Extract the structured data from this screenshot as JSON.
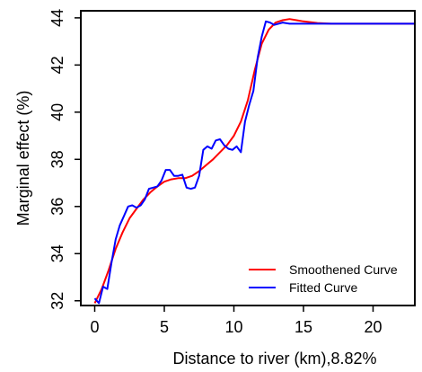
{
  "chart_data": {
    "type": "line",
    "title": "",
    "xlabel": "Distance to river (km),8.82%",
    "ylabel": "Marginal effect (%)",
    "xlim": [
      -1,
      23
    ],
    "ylim": [
      31.8,
      44.3
    ],
    "xticks": [
      0,
      5,
      10,
      15,
      20
    ],
    "yticks": [
      32,
      34,
      36,
      38,
      40,
      42,
      44
    ],
    "grid": false,
    "legend_position": "bottom-right",
    "series": [
      {
        "name": "Smoothened Curve",
        "color": "#ff0000",
        "x": [
          0,
          0.5,
          1,
          1.5,
          2,
          2.5,
          3,
          3.5,
          4,
          4.5,
          5,
          5.5,
          6,
          6.5,
          7,
          7.5,
          8,
          8.5,
          9,
          9.5,
          10,
          10.5,
          11,
          11.5,
          12,
          12.5,
          13,
          13.5,
          14,
          14.5,
          15,
          16,
          17,
          18,
          19,
          20,
          21,
          22,
          23
        ],
        "y": [
          31.9,
          32.5,
          33.3,
          34.2,
          34.9,
          35.5,
          35.9,
          36.3,
          36.6,
          36.85,
          37.05,
          37.15,
          37.2,
          37.2,
          37.3,
          37.5,
          37.75,
          38.0,
          38.3,
          38.6,
          39.0,
          39.6,
          40.5,
          41.8,
          42.9,
          43.5,
          43.8,
          43.9,
          43.95,
          43.9,
          43.85,
          43.78,
          43.75,
          43.75,
          43.75,
          43.75,
          43.75,
          43.75,
          43.75
        ]
      },
      {
        "name": "Fitted Curve",
        "color": "#0000ff",
        "x": [
          0,
          0.3,
          0.6,
          0.9,
          1.2,
          1.5,
          1.8,
          2.1,
          2.4,
          2.7,
          3.0,
          3.3,
          3.6,
          3.9,
          4.2,
          4.5,
          4.8,
          5.1,
          5.4,
          5.7,
          6.0,
          6.3,
          6.6,
          6.9,
          7.2,
          7.5,
          7.8,
          8.1,
          8.4,
          8.7,
          9.0,
          9.3,
          9.6,
          9.9,
          10.2,
          10.5,
          10.8,
          11.1,
          11.4,
          11.7,
          12.0,
          12.3,
          12.6,
          12.9,
          13.2,
          13.5,
          14,
          15,
          16,
          17,
          18,
          20,
          23
        ],
        "y": [
          32.1,
          31.9,
          32.6,
          32.5,
          33.6,
          34.6,
          35.2,
          35.6,
          36.0,
          36.05,
          35.95,
          36.05,
          36.3,
          36.75,
          36.8,
          36.85,
          37.1,
          37.55,
          37.55,
          37.3,
          37.3,
          37.35,
          36.8,
          36.75,
          36.8,
          37.3,
          38.4,
          38.55,
          38.45,
          38.8,
          38.85,
          38.6,
          38.45,
          38.4,
          38.55,
          38.3,
          39.6,
          40.3,
          40.9,
          42.3,
          43.2,
          43.85,
          43.8,
          43.7,
          43.75,
          43.8,
          43.75,
          43.75,
          43.75,
          43.75,
          43.75,
          43.75,
          43.75
        ]
      }
    ]
  }
}
